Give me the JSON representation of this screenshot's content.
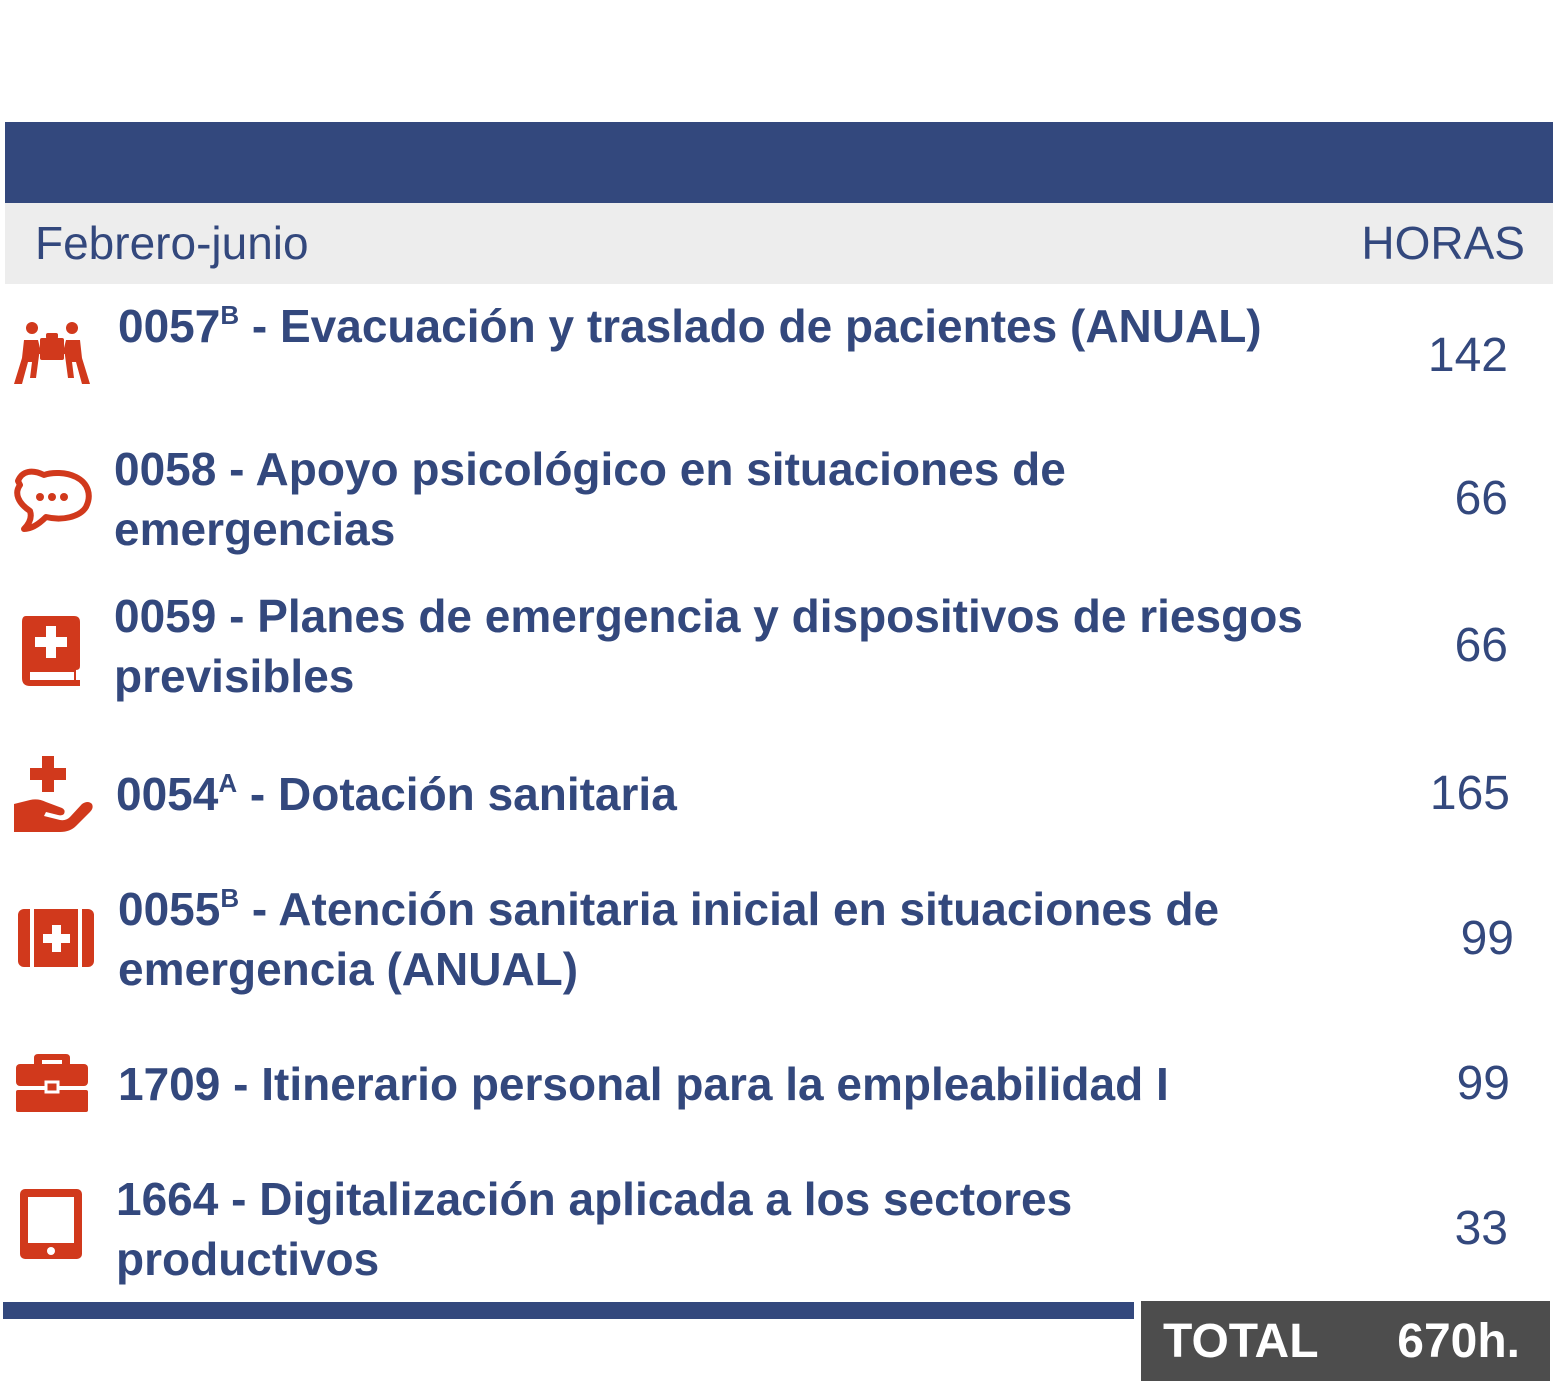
{
  "header": {
    "period_label": "Febrero-junio",
    "hours_label": "HORAS"
  },
  "modules": [
    {
      "code": "0057",
      "sup": "B",
      "name": " - Evacuación y traslado de pacientes (ANUAL)",
      "hours": "142",
      "icon": "people-carrying-icon"
    },
    {
      "code": "0058",
      "sup": "",
      "name": " - Apoyo psicológico en situaciones de emergencias",
      "hours": "66",
      "icon": "speech-bubble-icon"
    },
    {
      "code": "0059",
      "sup": "",
      "name": " - Planes de emergencia y dispositivos de riesgos previsibles",
      "hours": "66",
      "icon": "medical-book-icon"
    },
    {
      "code": "0054",
      "sup": "A",
      "name": " - Dotación sanitaria",
      "hours": "165",
      "icon": "hand-holding-medical-icon"
    },
    {
      "code": "0055",
      "sup": "B",
      "name": " - Atención sanitaria inicial en situaciones de emergencia (ANUAL)",
      "hours": "99",
      "icon": "first-aid-kit-icon"
    },
    {
      "code": "1709",
      "sup": "",
      "name": " - Itinerario personal para la empleabilidad I",
      "hours": "99",
      "icon": "briefcase-icon"
    },
    {
      "code": "1664",
      "sup": "",
      "name": " - Digitalización aplicada a los sectores productivos",
      "hours": "33",
      "icon": "tablet-icon"
    }
  ],
  "total": {
    "label": "TOTAL",
    "value": "670h."
  },
  "colors": {
    "primary": "#33487d",
    "icon": "#d1391c",
    "subheader_bg": "#ededed",
    "total_bg": "#4d4d4d"
  }
}
